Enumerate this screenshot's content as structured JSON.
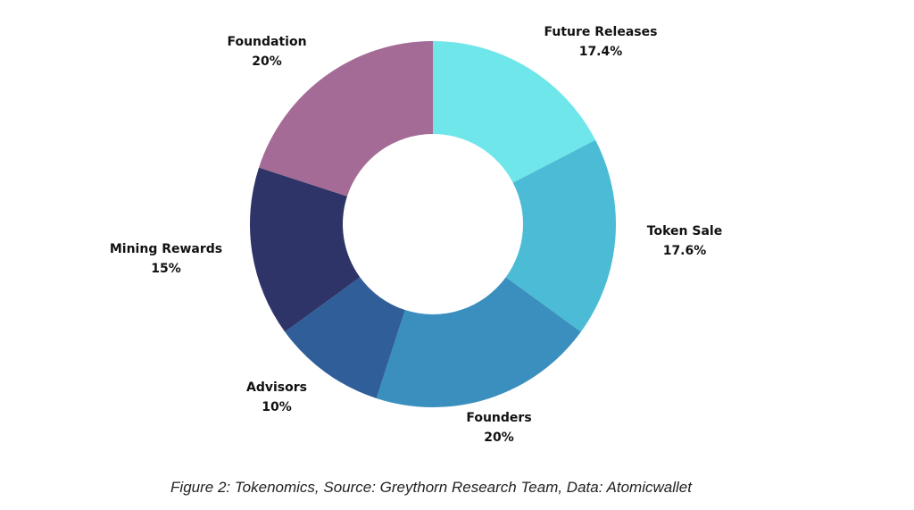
{
  "chart_data": {
    "type": "pie",
    "donut": true,
    "start": "top, clockwise",
    "slices": [
      {
        "label": "Future Releases",
        "value": 17.4,
        "value_label": "17.4%",
        "color": "#6ee6ea"
      },
      {
        "label": "Token Sale",
        "value": 17.6,
        "value_label": "17.6%",
        "color": "#4cbcd6"
      },
      {
        "label": "Founders",
        "value": 20,
        "value_label": "20%",
        "color": "#3a8fbe"
      },
      {
        "label": "Advisors",
        "value": 10,
        "value_label": "10%",
        "color": "#2f5e98"
      },
      {
        "label": "Mining Rewards",
        "value": 15,
        "value_label": "15%",
        "color": "#2e3467"
      },
      {
        "label": "Foundation",
        "value": 20,
        "value_label": "20%",
        "color": "#a36b95"
      }
    ],
    "legend": "none"
  },
  "caption": "Figure 2:  Tokenomics, Source: Greythorn Research Team, Data: Atomicwallet"
}
